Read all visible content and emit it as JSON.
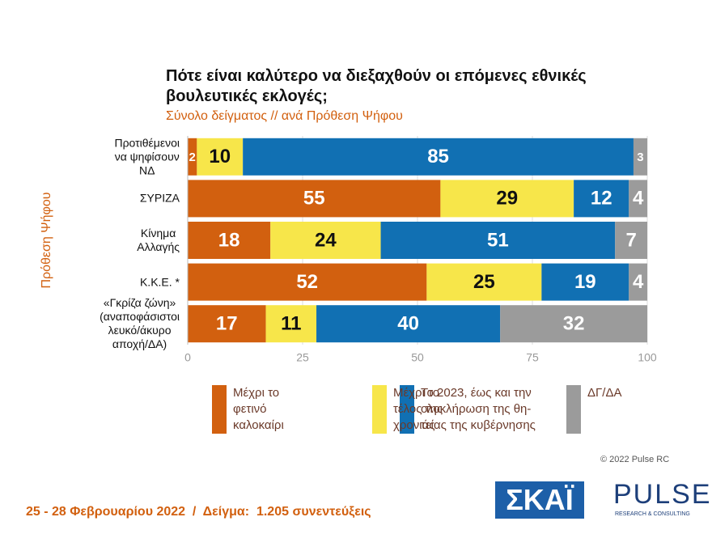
{
  "chart_data": {
    "type": "stacked-bar-horizontal",
    "title": "Πότε είναι καλύτερο να διεξαχθούν οι επόμενες εθνικές\nβουλευτικές εκλογές;",
    "subtitle": "Σύνολο δείγματος // ανά Πρόθεση Ψήφου",
    "y_label": "Πρόθεση Ψήφου",
    "categories": [
      "Προτιθέμενοι\nνα ψηφίσουν\nΝΔ",
      "ΣΥΡΙΖΑ",
      "Κίνημα\nΑλλαγής",
      "Κ.Κ.Ε. *",
      "«Γκρίζα ζώνη»\n(αναποφάσιστοι\nλευκό/άκυρο\nαποχή/ΔΑ)"
    ],
    "series": [
      {
        "name": "Μέχρι το\nφετινό\nκαλοκαίρι",
        "color": "#d2600f",
        "values": [
          2,
          55,
          18,
          52,
          17
        ]
      },
      {
        "name": "Μέχρι το\nτέλος της\nχρονιάς",
        "color": "#f7e64a",
        "values": [
          10,
          29,
          24,
          25,
          11
        ]
      },
      {
        "name": "Το 2023, έως και την\nολοκλήρωση της θη-\nτείας της κυβέρνησης",
        "color": "#1170b3",
        "values": [
          85,
          12,
          51,
          19,
          40
        ]
      },
      {
        "name": "ΔΓ/ΔΑ",
        "color": "#9b9b9b",
        "values": [
          3,
          4,
          7,
          4,
          32
        ]
      }
    ],
    "xlim": [
      0,
      100
    ],
    "xticks": [
      0,
      25,
      50,
      75,
      100
    ],
    "grid": true,
    "footer": "25 - 28 Φεβρουαρίου 2022  /  Δείγμα:  1.205 συνεντεύξεις",
    "copyright": "© 2022 Pulse RC",
    "logos": {
      "skai": "ΣΚΑΪ",
      "pulse": "PULSE",
      "pulse_sub": "RESEARCH & CONSULTING"
    }
  }
}
